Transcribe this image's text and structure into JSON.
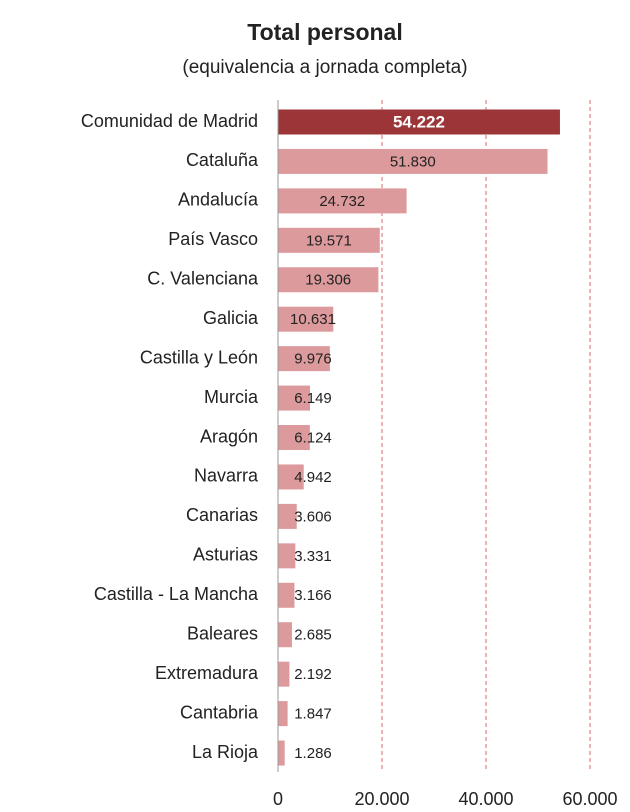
{
  "chart_data": {
    "type": "bar",
    "orientation": "horizontal",
    "title": "Total personal",
    "subtitle": "(equivalencia a jornada completa)",
    "categories": [
      "Comunidad de Madrid",
      "Cataluña",
      "Andalucía",
      "País Vasco",
      "C. Valenciana",
      "Galicia",
      "Castilla y León",
      "Murcia",
      "Aragón",
      "Navarra",
      "Canarias",
      "Asturias",
      "Castilla - La Mancha",
      "Baleares",
      "Extremadura",
      "Cantabria",
      "La Rioja"
    ],
    "values": [
      54222,
      51830,
      24732,
      19571,
      19306,
      10631,
      9976,
      6149,
      6124,
      4942,
      3606,
      3331,
      3166,
      2685,
      2192,
      1847,
      1286
    ],
    "value_labels": [
      "54.222",
      "51.830",
      "24.732",
      "19.571",
      "19.306",
      "10.631",
      "9.976",
      "6.149",
      "6.124",
      "4.942",
      "3.606",
      "3.331",
      "3.166",
      "2.685",
      "2.192",
      "1.847",
      "1.286"
    ],
    "colors": [
      "#9b3537",
      "#dc9a9c",
      "#dc9a9c",
      "#dc9a9c",
      "#dc9a9c",
      "#dc9a9c",
      "#dc9a9c",
      "#dc9a9c",
      "#dc9a9c",
      "#dc9a9c",
      "#dc9a9c",
      "#dc9a9c",
      "#dc9a9c",
      "#dc9a9c",
      "#dc9a9c",
      "#dc9a9c",
      "#dc9a9c"
    ],
    "xlim": [
      0,
      60000
    ],
    "xticks": [
      0,
      {
        "value": 20000,
        "label": "20.000"
      },
      {
        "value": 40000,
        "label": "40.000"
      },
      {
        "value": 60000,
        "label": "60.000"
      }
    ],
    "grid": true
  }
}
